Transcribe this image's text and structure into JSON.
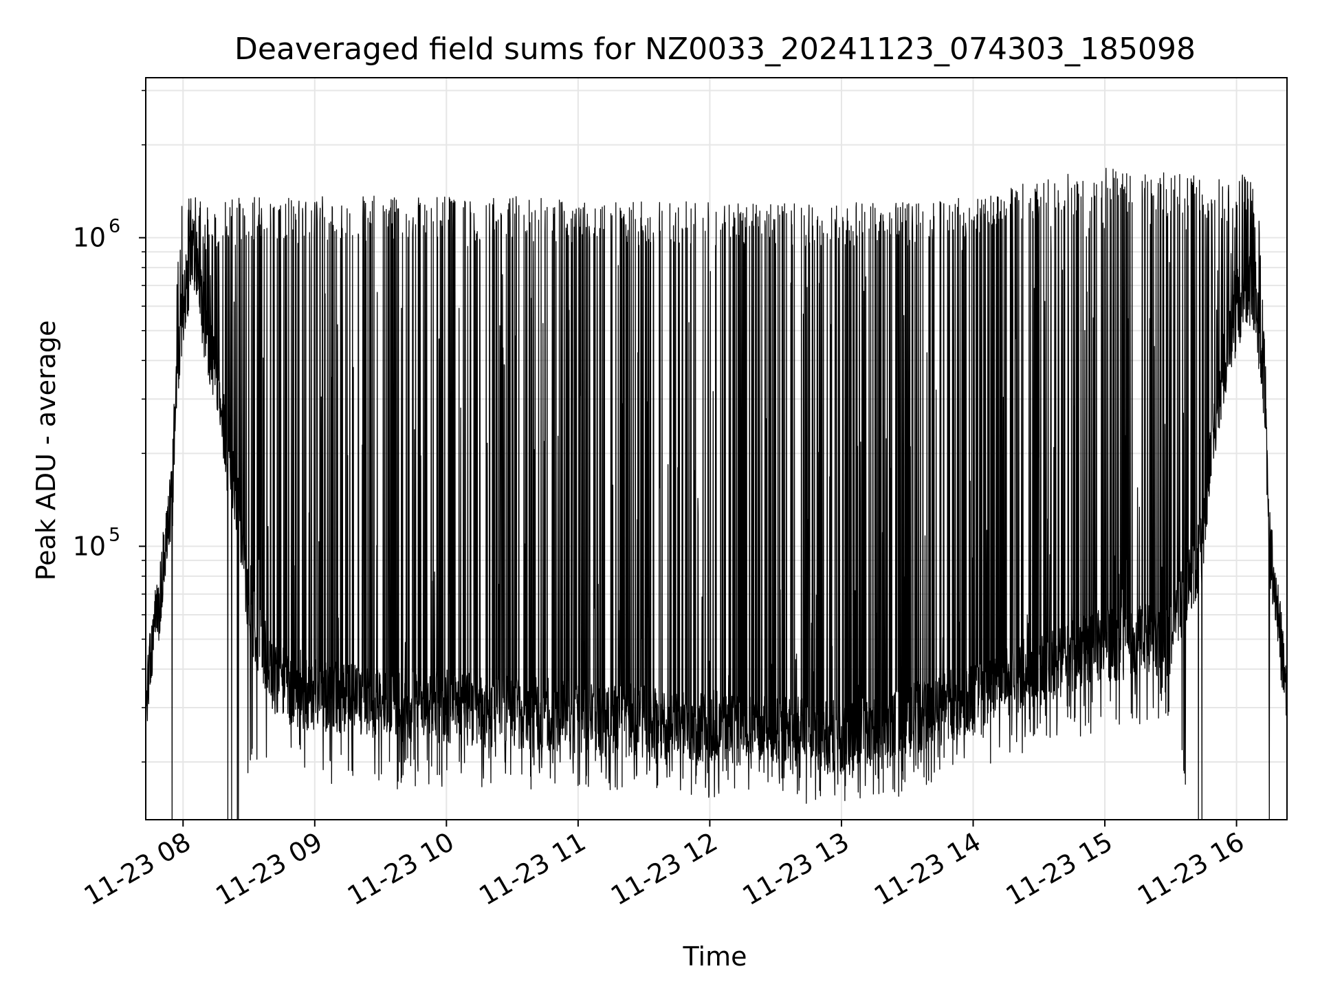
{
  "chart_data": {
    "type": "line",
    "title": "Deaveraged field sums for NZ0033_20241123_074303_185098",
    "xlabel": "Time",
    "ylabel": "Peak ADU - average",
    "yscale": "log",
    "grid": true,
    "line_color": "#000000",
    "grid_color": "#e6e6e6",
    "x_ticks": [
      "11-23 08",
      "11-23 09",
      "11-23 10",
      "11-23 11",
      "11-23 12",
      "11-23 13",
      "11-23 14",
      "11-23 15",
      "11-23 16"
    ],
    "xlim": [
      "2024-11-23 07:43",
      "2024-11-23 16:23"
    ],
    "y_ticks": [
      {
        "exp": "5",
        "value": 100000
      },
      {
        "exp": "6",
        "value": 1000000
      }
    ],
    "y_tick_base": "10",
    "ylim": [
      13000,
      3300000
    ],
    "envelope": {
      "x": [
        "07:43",
        "07:50",
        "07:55",
        "08:00",
        "08:05",
        "08:10",
        "08:20",
        "08:30",
        "08:40",
        "08:50",
        "09:00",
        "09:30",
        "10:00",
        "10:30",
        "11:00",
        "11:30",
        "12:00",
        "12:30",
        "13:00",
        "13:30",
        "14:00",
        "14:30",
        "15:00",
        "15:30",
        "15:45",
        "15:55",
        "16:05",
        "16:10",
        "16:15",
        "16:20",
        "16:23"
      ],
      "baseline": [
        30000,
        70000,
        150000,
        600000,
        900000,
        500000,
        200000,
        60000,
        38000,
        34000,
        33000,
        31000,
        30000,
        29000,
        28000,
        27000,
        26000,
        25000,
        24000,
        27000,
        32000,
        40000,
        48000,
        50000,
        100000,
        400000,
        700000,
        500000,
        100000,
        50000,
        30000
      ],
      "spike_top": [
        0,
        0,
        0,
        1500000,
        1500000,
        1200000,
        1300000,
        1300000,
        1300000,
        1300000,
        1300000,
        1300000,
        1300000,
        1300000,
        1250000,
        1250000,
        1250000,
        1250000,
        1250000,
        1250000,
        1300000,
        1500000,
        1600000,
        1550000,
        1500000,
        1500000,
        1600000,
        1200000,
        0,
        0,
        0
      ],
      "spike_floor": [
        0,
        0,
        0,
        0,
        0,
        0,
        0,
        22000,
        21000,
        21000,
        20000,
        19000,
        19000,
        19000,
        19000,
        19000,
        18000,
        17000,
        17000,
        18000,
        22000,
        26000,
        30000,
        32000,
        0,
        0,
        0,
        0,
        0,
        0,
        0
      ]
    }
  }
}
